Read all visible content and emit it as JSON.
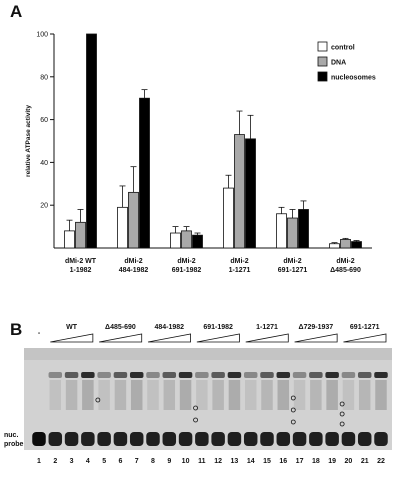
{
  "panel_a": {
    "label": "A",
    "chart_data": {
      "type": "bar",
      "title": "",
      "xlabel": "",
      "ylabel": "relative ATPase activity",
      "ylim": [
        0,
        100
      ],
      "yticks": [
        20,
        40,
        60,
        80,
        100
      ],
      "legend_position": "top-right",
      "categories": [
        {
          "line1": "dMi-2 WT",
          "line2": "1-1982"
        },
        {
          "line1": "dMi-2",
          "line2": "484-1982"
        },
        {
          "line1": "dMi-2",
          "line2": "691-1982"
        },
        {
          "line1": "dMi-2",
          "line2": "1-1271"
        },
        {
          "line1": "dMi-2",
          "line2": "691-1271"
        },
        {
          "line1": "dMi-2",
          "line2": "Δ485-690"
        }
      ],
      "series": [
        {
          "name": "control",
          "color": "#ffffff",
          "values": [
            8,
            19,
            7,
            28,
            16,
            2
          ],
          "errors": [
            5,
            10,
            3,
            6,
            3,
            0.5
          ]
        },
        {
          "name": "DNA",
          "color": "#a9a9a9",
          "values": [
            12,
            26,
            8,
            53,
            14,
            4
          ],
          "errors": [
            6,
            12,
            2,
            11,
            4,
            0.5
          ]
        },
        {
          "name": "nucleosomes",
          "color": "#000000",
          "values": [
            100,
            70,
            6,
            51,
            18,
            3
          ],
          "errors": [
            0,
            4,
            1,
            11,
            4,
            0.5
          ]
        }
      ]
    }
  },
  "panel_b": {
    "label": "B",
    "probe_label_line1": "nuc.",
    "probe_label_line2": "probe",
    "mock_label": "-",
    "groups": [
      {
        "label": "WT",
        "lanes": [
          2,
          3,
          4
        ]
      },
      {
        "label": "Δ485-690",
        "lanes": [
          5,
          6,
          7
        ]
      },
      {
        "label": "484-1982",
        "lanes": [
          8,
          9,
          10
        ]
      },
      {
        "label": "691-1982",
        "lanes": [
          11,
          12,
          13
        ]
      },
      {
        "label": "1-1271",
        "lanes": [
          14,
          15,
          16
        ]
      },
      {
        "label": "Δ729-1937",
        "lanes": [
          17,
          18,
          19
        ]
      },
      {
        "label": "691-1271",
        "lanes": [
          20,
          21,
          22
        ]
      }
    ],
    "lane_numbers": [
      "1",
      "2",
      "3",
      "4",
      "5",
      "6",
      "7",
      "8",
      "9",
      "10",
      "11",
      "12",
      "13",
      "14",
      "15",
      "16",
      "17",
      "18",
      "19",
      "20",
      "21",
      "22"
    ]
  }
}
